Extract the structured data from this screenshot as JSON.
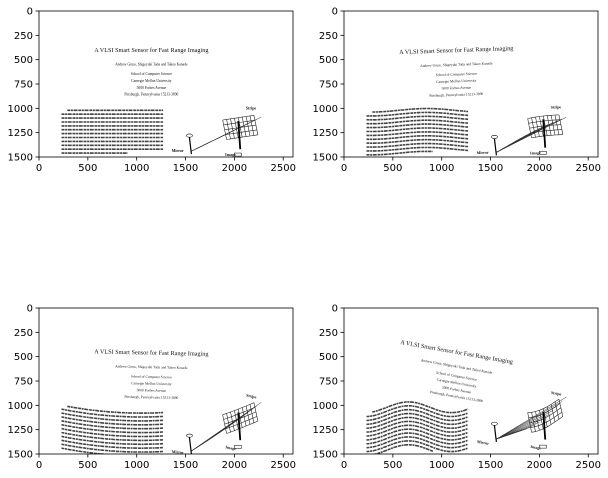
{
  "chart_data": [
    {
      "type": "image",
      "panel": "top-left",
      "warp": "none",
      "xlim": [
        0,
        2600
      ],
      "ylim": [
        1500,
        0
      ],
      "xticks": [
        0,
        500,
        1000,
        1500,
        2000,
        2500
      ],
      "yticks": [
        0,
        250,
        500,
        750,
        1000,
        1250,
        1500
      ]
    },
    {
      "type": "image",
      "panel": "top-right",
      "warp": "slight-wave",
      "xlim": [
        0,
        2600
      ],
      "ylim": [
        1500,
        0
      ],
      "xticks": [
        0,
        500,
        1000,
        1500,
        2000,
        2500
      ],
      "yticks": [
        0,
        250,
        500,
        750,
        1000,
        1250,
        1500
      ]
    },
    {
      "type": "image",
      "panel": "bottom-left",
      "warp": "arc",
      "xlim": [
        0,
        2600
      ],
      "ylim": [
        1500,
        0
      ],
      "xticks": [
        0,
        500,
        1000,
        1500,
        2000,
        2500
      ],
      "yticks": [
        0,
        250,
        500,
        750,
        1000,
        1250,
        1500
      ]
    },
    {
      "type": "image",
      "panel": "bottom-right",
      "warp": "strong-wave",
      "xlim": [
        0,
        2600
      ],
      "ylim": [
        1500,
        0
      ],
      "xticks": [
        0,
        500,
        1000,
        1500,
        2000,
        2500
      ],
      "yticks": [
        0,
        250,
        500,
        750,
        1000,
        1250,
        1500
      ]
    }
  ],
  "document": {
    "title": "A VLSI Smart Sensor for Fast Range Imaging",
    "authors": "Andrew Gruss, Shigeyuki Tada and Takeo Kanade",
    "affiliation": [
      "School of Computer Science",
      "Carnegie Mellon University",
      "5000 Forbes Avenue",
      "Pittsburgh, Pennsylvania 15213-3890"
    ],
    "figure_labels": {
      "stripe": "Stripe",
      "mirror": "Mirror",
      "image": "Image"
    }
  }
}
